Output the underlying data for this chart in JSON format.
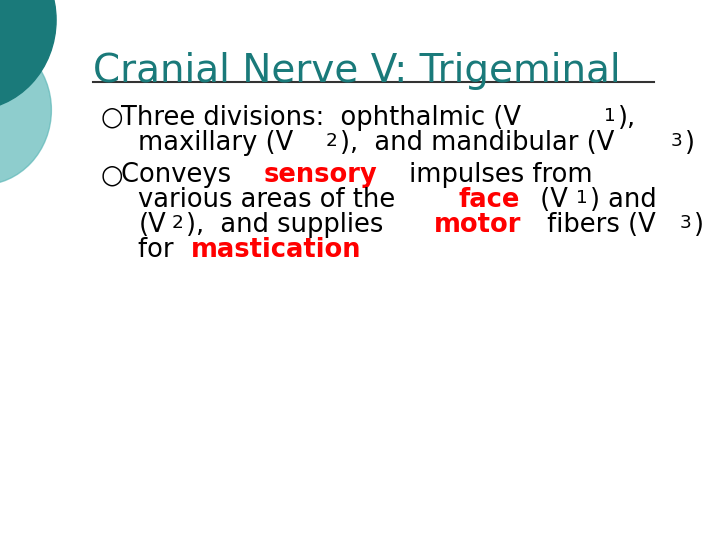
{
  "title": "Cranial Nerve V: Trigeminal",
  "title_color": "#1a7a7a",
  "title_fontsize": 28,
  "bg_color": "#ffffff",
  "line_color": "#333333",
  "bullet_color": "#333333",
  "text_color": "#000000",
  "red_color": "#ff0000",
  "body_fontsize": 18.5,
  "bullet_symbol": "○",
  "bullet1_line1": "Three divisions:  ophthalmic (V",
  "bullet1_line1_sub1": "1",
  "bullet1_line1_end": "),",
  "bullet1_line2_start": "maxillary (V",
  "bullet1_line2_sub2": "2",
  "bullet1_line2_mid": "),  and mandibular (V",
  "bullet1_line2_sub3": "3",
  "bullet1_line2_end": ")",
  "bullet2_line1_start": "Conveys ",
  "bullet2_line1_red": "sensory",
  "bullet2_line1_end": " impulses from",
  "bullet2_line2": "various areas of the ",
  "bullet2_line2_red": "face",
  "bullet2_line2_end": " (V",
  "bullet2_line2_sub1": "1",
  "bullet2_line2_end2": ") and",
  "bullet2_line3_start": "(V",
  "bullet2_line3_sub2": "2",
  "bullet2_line3_mid": "),  and supplies ",
  "bullet2_line3_red": "motor",
  "bullet2_line3_end": " fibers (V",
  "bullet2_line3_sub3": "3",
  "bullet2_line3_end2": ")",
  "bullet2_line4_start": "for ",
  "bullet2_line4_red": "mastication",
  "decor_circle_color": "#1a7a7a",
  "decor_circle2_color": "#5fb8b8"
}
